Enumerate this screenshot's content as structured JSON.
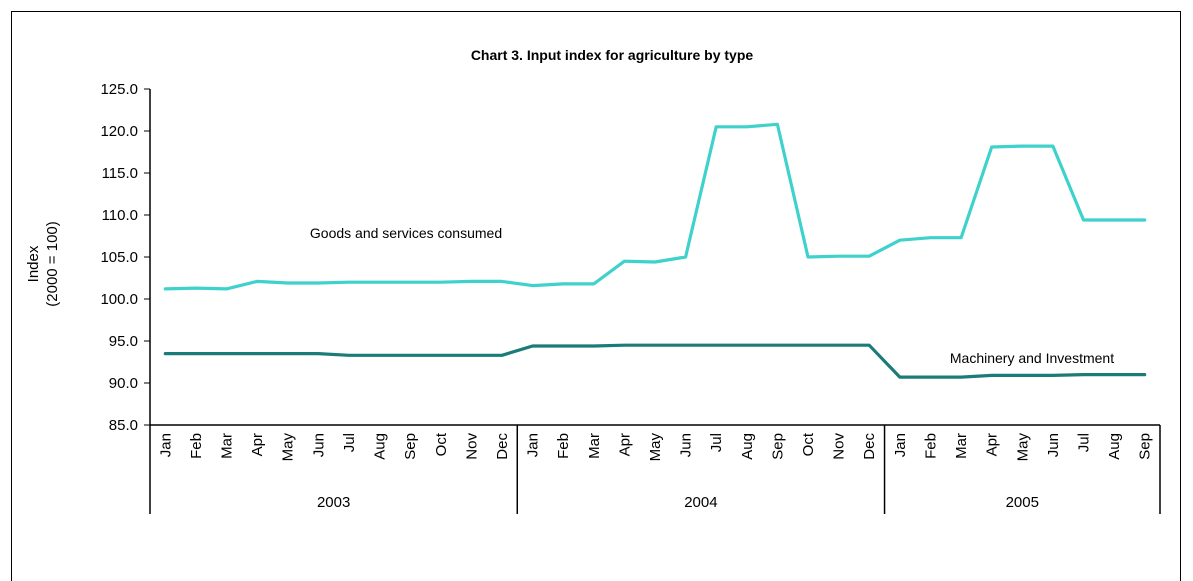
{
  "chart_data": {
    "type": "line",
    "title": "Chart 3.  Input index for agriculture by type",
    "ylabel_line1": "Index",
    "ylabel_line2": "(2000 = 100)",
    "ylim": [
      85.0,
      125.0
    ],
    "yticks": [
      "125.0",
      "120.0",
      "115.0",
      "110.0",
      "105.0",
      "100.0",
      "95.0",
      "90.0",
      "85.0"
    ],
    "ytick_values": [
      125,
      120,
      115,
      110,
      105,
      100,
      95,
      90,
      85
    ],
    "grid": false,
    "legend": "none",
    "months": [
      "Jan",
      "Feb",
      "Mar",
      "Apr",
      "May",
      "Jun",
      "Jul",
      "Aug",
      "Sep",
      "Oct",
      "Nov",
      "Dec",
      "Jan",
      "Feb",
      "Mar",
      "Apr",
      "May",
      "Jun",
      "Jul",
      "Aug",
      "Sep",
      "Oct",
      "Nov",
      "Dec",
      "Jan",
      "Feb",
      "Mar",
      "Apr",
      "May",
      "Jun",
      "Jul",
      "Aug",
      "Sep"
    ],
    "years": [
      {
        "label": "2003",
        "count": 12
      },
      {
        "label": "2004",
        "count": 12
      },
      {
        "label": "2005",
        "count": 9
      }
    ],
    "series": [
      {
        "name": "Goods and services consumed",
        "color": "#3fd1cc",
        "values": [
          101.2,
          101.3,
          101.2,
          102.1,
          101.9,
          101.9,
          102.0,
          102.0,
          102.0,
          102.0,
          102.1,
          102.1,
          101.6,
          101.8,
          101.8,
          104.5,
          104.4,
          105.0,
          120.5,
          120.5,
          120.8,
          105.0,
          105.1,
          105.1,
          107.0,
          107.3,
          107.3,
          118.1,
          118.2,
          118.2,
          109.4,
          109.4,
          109.4
        ]
      },
      {
        "name": "Machinery and Investment",
        "color": "#1b7b78",
        "values": [
          93.5,
          93.5,
          93.5,
          93.5,
          93.5,
          93.5,
          93.3,
          93.3,
          93.3,
          93.3,
          93.3,
          93.3,
          94.4,
          94.4,
          94.4,
          94.5,
          94.5,
          94.5,
          94.5,
          94.5,
          94.5,
          94.5,
          94.5,
          94.5,
          90.7,
          90.7,
          90.7,
          90.9,
          90.9,
          90.9,
          91.0,
          91.0,
          91.0
        ]
      }
    ]
  }
}
